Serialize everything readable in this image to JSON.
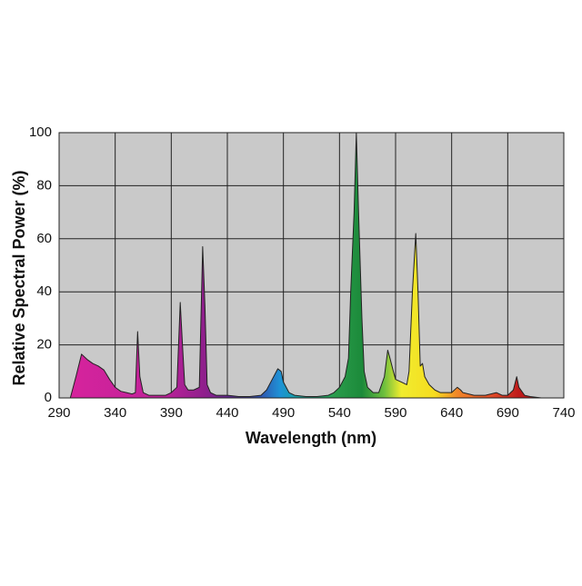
{
  "chart_data": {
    "type": "area",
    "xlabel": "Wavelength (nm)",
    "ylabel": "Relative Spectral Power (%)",
    "x": [
      300,
      305,
      310,
      315,
      320,
      325,
      330,
      335,
      340,
      345,
      350,
      355,
      358,
      360,
      362,
      365,
      370,
      380,
      385,
      390,
      395,
      398,
      400,
      402,
      405,
      410,
      415,
      418,
      420,
      422,
      425,
      430,
      440,
      450,
      460,
      470,
      475,
      480,
      485,
      488,
      490,
      495,
      500,
      510,
      520,
      530,
      535,
      540,
      545,
      548,
      550,
      553,
      555,
      557,
      560,
      562,
      565,
      570,
      575,
      580,
      583,
      585,
      588,
      590,
      595,
      600,
      602,
      605,
      608,
      610,
      612,
      614,
      616,
      620,
      625,
      630,
      635,
      640,
      645,
      648,
      650,
      660,
      670,
      680,
      685,
      690,
      695,
      698,
      700,
      705,
      710,
      720,
      740
    ],
    "series": [
      {
        "values": [
          0,
          8,
          16.5,
          14.5,
          13,
          12,
          10.5,
          7,
          4,
          2.5,
          2,
          1.5,
          2,
          25,
          8,
          2,
          1,
          1,
          1,
          2,
          4,
          36,
          20,
          5,
          3,
          3,
          4,
          57,
          35,
          5,
          2,
          1,
          1,
          0.5,
          0.5,
          1,
          3,
          7,
          11,
          10,
          6,
          2,
          1,
          0.5,
          0.5,
          1,
          2,
          4,
          8,
          15,
          40,
          70,
          100,
          70,
          30,
          10,
          4,
          2,
          2,
          8,
          18,
          15,
          10,
          7,
          6,
          5,
          10,
          40,
          62,
          40,
          12,
          13,
          8,
          5,
          3,
          2,
          2,
          2,
          4,
          3,
          2,
          1,
          1,
          2,
          1,
          1,
          3,
          8,
          4,
          1,
          0.5,
          0,
          0
        ]
      }
    ],
    "fill_gradient": [
      {
        "x": 300,
        "color": "#d6239c"
      },
      {
        "x": 380,
        "color": "#c0229a"
      },
      {
        "x": 420,
        "color": "#8e1f8c"
      },
      {
        "x": 445,
        "color": "#5b2d8f"
      },
      {
        "x": 470,
        "color": "#2f56b0"
      },
      {
        "x": 487,
        "color": "#1e92d6"
      },
      {
        "x": 505,
        "color": "#18a39a"
      },
      {
        "x": 535,
        "color": "#2a9c4c"
      },
      {
        "x": 560,
        "color": "#1c8a3a"
      },
      {
        "x": 580,
        "color": "#6fbf3e"
      },
      {
        "x": 595,
        "color": "#f0ec2e"
      },
      {
        "x": 625,
        "color": "#f6dc1f"
      },
      {
        "x": 645,
        "color": "#f0862a"
      },
      {
        "x": 672,
        "color": "#e4522a"
      },
      {
        "x": 700,
        "color": "#bf1a1a"
      }
    ],
    "xlim": [
      290,
      740
    ],
    "xticks": [
      290,
      340,
      390,
      440,
      490,
      540,
      590,
      640,
      690,
      740
    ],
    "ylim": [
      0,
      100
    ],
    "yticks": [
      0,
      20,
      40,
      60,
      80,
      100
    ],
    "grid": true,
    "background": "#c9c9c9"
  }
}
